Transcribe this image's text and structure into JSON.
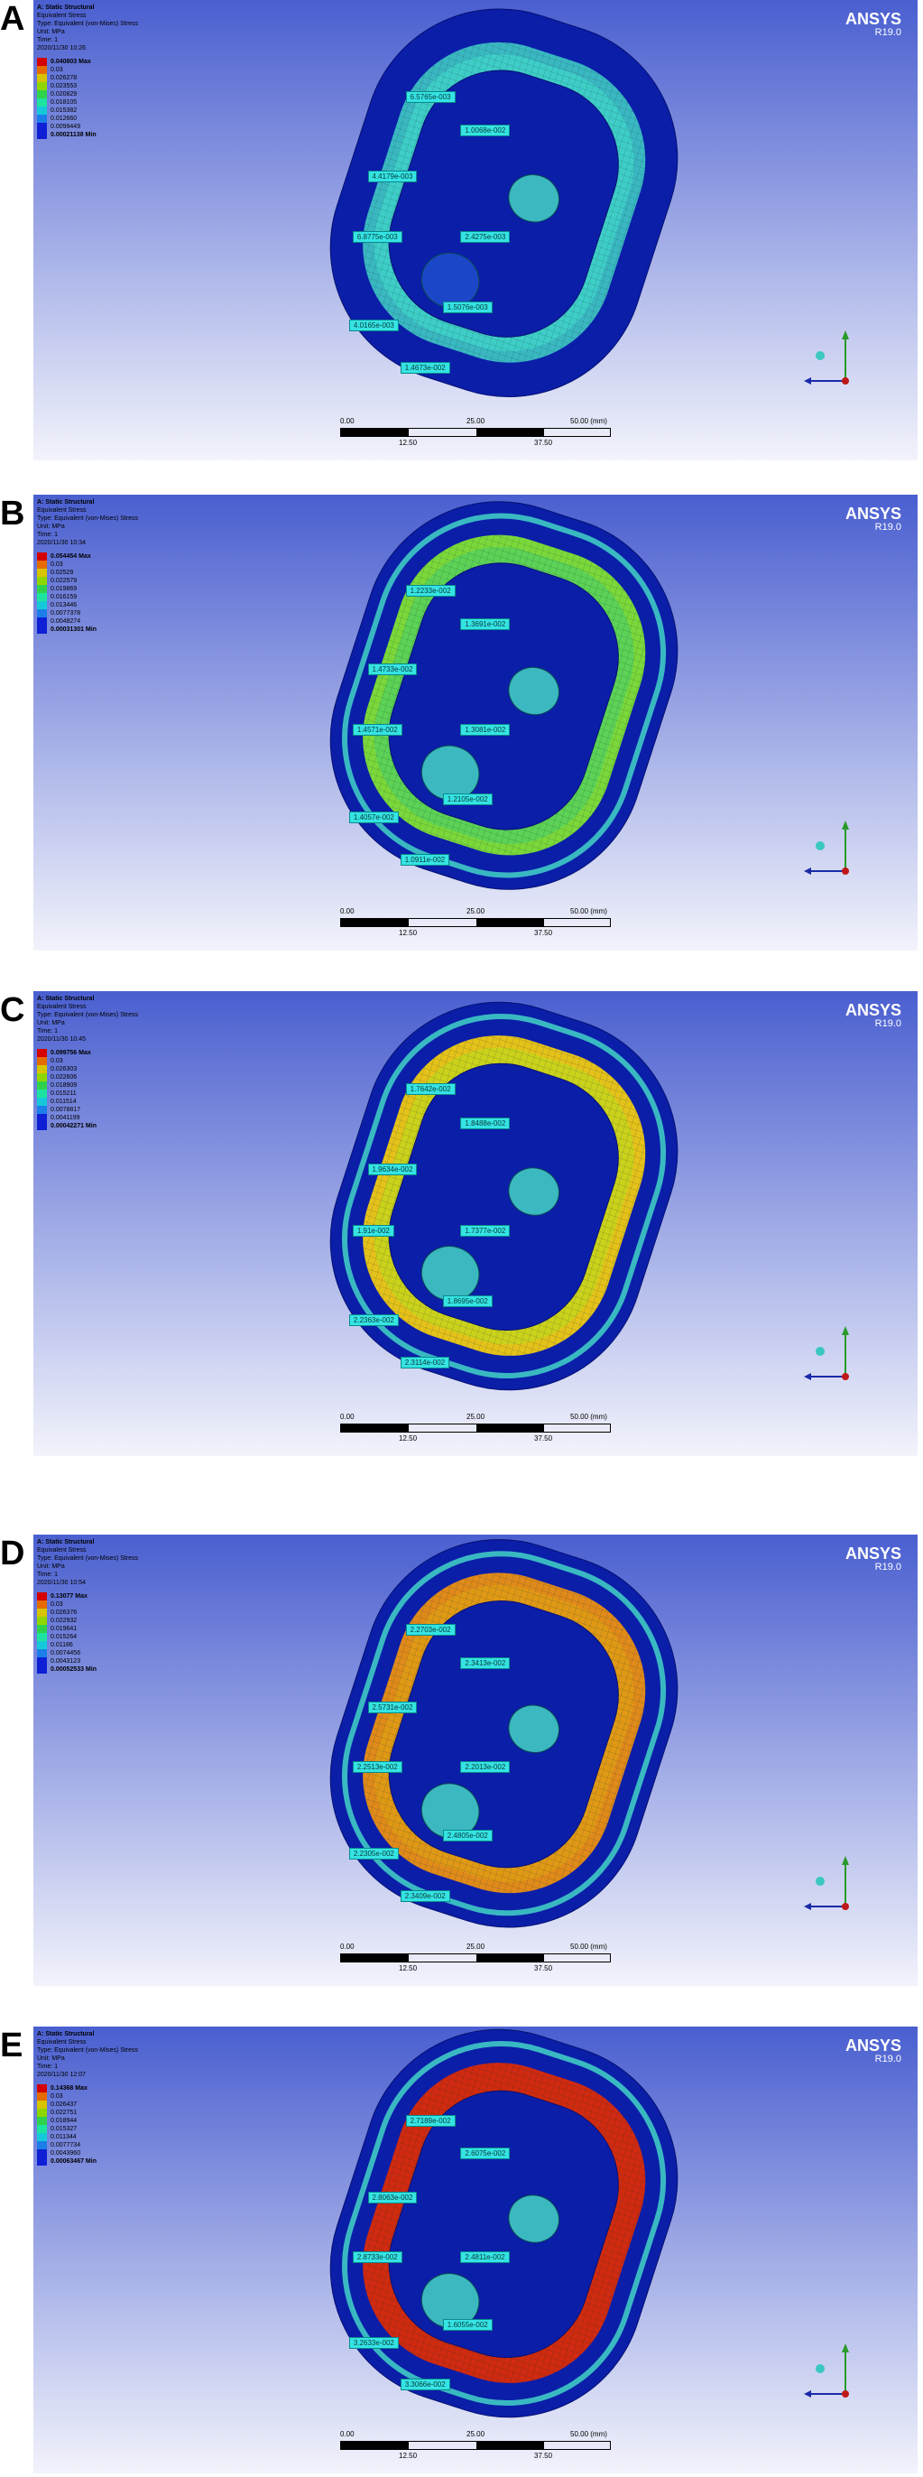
{
  "legend_scale_colors": [
    "#d40000",
    "#e56b00",
    "#d7c400",
    "#8fd600",
    "#2fd24c",
    "#1ce4a0",
    "#15c9da",
    "#1c7ee8",
    "#0e1fd6"
  ],
  "brand": {
    "name": "ANSYS",
    "version": "R19.0"
  },
  "scale": {
    "ticks_top": [
      "0.00",
      "25.00",
      "50.00 (mm)"
    ],
    "ticks_bottom": [
      "12.50",
      "37.50"
    ]
  },
  "panels": [
    {
      "letter": "A",
      "legend": {
        "title": "A: Static Structural",
        "lines": [
          "Equivalent Stress",
          "Type: Equivalent (von-Mises) Stress",
          "Unit: MPa",
          "Time: 1",
          "2020/11/30 10:26"
        ],
        "max": "0.040803 Max",
        "values": [
          "0.03",
          "0.026278",
          "0.023553",
          "0.020829",
          "0.018105",
          "0.015382",
          "0.012660",
          "0.0099449"
        ],
        "min": "0.00021138 Min"
      },
      "labels": [
        "6.5765e-003",
        "1.0068e-002",
        "4.4179e-003",
        "6.8775e-003",
        "2.4275e-003",
        "1.5076e-003",
        "4.0165e-003",
        "1.4673e-002"
      ]
    },
    {
      "letter": "B",
      "legend": {
        "title": "A: Static Structural",
        "lines": [
          "Equivalent Stress",
          "Type: Equivalent (von-Mises) Stress",
          "Unit: MPa",
          "Time: 1",
          "2020/11/30 10:34"
        ],
        "max": "0.054454 Max",
        "values": [
          "0.03",
          "0.02529",
          "0.022579",
          "0.019869",
          "0.016159",
          "0.013446",
          "0.0077378",
          "0.0048274"
        ],
        "min": "0.00031301 Min"
      },
      "labels": [
        "1.2233e-002",
        "1.3691e-002",
        "1.4733e-002",
        "1.4571e-002",
        "1.3081e-002",
        "1.2105e-002",
        "1.4057e-002",
        "1.0911e-002"
      ]
    },
    {
      "letter": "C",
      "legend": {
        "title": "A: Static Structural",
        "lines": [
          "Equivalent Stress",
          "Type: Equivalent (von-Mises) Stress",
          "Unit: MPa",
          "Time: 1",
          "2020/11/30 10:45"
        ],
        "max": "0.099756 Max",
        "values": [
          "0.03",
          "0.026303",
          "0.022606",
          "0.018909",
          "0.015211",
          "0.011514",
          "0.0078817",
          "0.0041199"
        ],
        "min": "0.00042271 Min"
      },
      "labels": [
        "1.7642e-002",
        "1.8488e-002",
        "1.9634e-002",
        "1.91e-002",
        "1.7377e-002",
        "1.8695e-002",
        "2.2363e-002",
        "2.3114e-002"
      ]
    },
    {
      "letter": "D",
      "legend": {
        "title": "A: Static Structural",
        "lines": [
          "Equivalent Stress",
          "Type: Equivalent (von-Mises) Stress",
          "Unit: MPa",
          "Time: 1",
          "2020/11/30 10:54"
        ],
        "max": "0.13077 Max",
        "values": [
          "0.03",
          "0.026376",
          "0.022932",
          "0.019641",
          "0.015264",
          "0.01186",
          "0.0074456",
          "0.0043123"
        ],
        "min": "0.00052533 Min"
      },
      "labels": [
        "2.2703e-002",
        "2.3413e-002",
        "2.5731e-002",
        "2.2513e-002",
        "2.2013e-002",
        "2.4805e-002",
        "2.2305e-002",
        "2.3409e-002"
      ]
    },
    {
      "letter": "E",
      "legend": {
        "title": "A: Static Structural",
        "lines": [
          "Equivalent Stress",
          "Type: Equivalent (von-Mises) Stress",
          "Unit: MPa",
          "Time: 1",
          "2020/11/30 12:07"
        ],
        "max": "0.14368 Max",
        "values": [
          "0.03",
          "0.026437",
          "0.022751",
          "0.018944",
          "0.015327",
          "0.011344",
          "0.0077734",
          "0.0043960"
        ],
        "min": "0.00063467 Min"
      },
      "labels": [
        "2.7189e-002",
        "2.6075e-002",
        "2.8063e-002",
        "2.8733e-002",
        "2.4811e-002",
        "1.6055e-002",
        "3.2633e-002",
        "3.3066e-002"
      ]
    }
  ]
}
